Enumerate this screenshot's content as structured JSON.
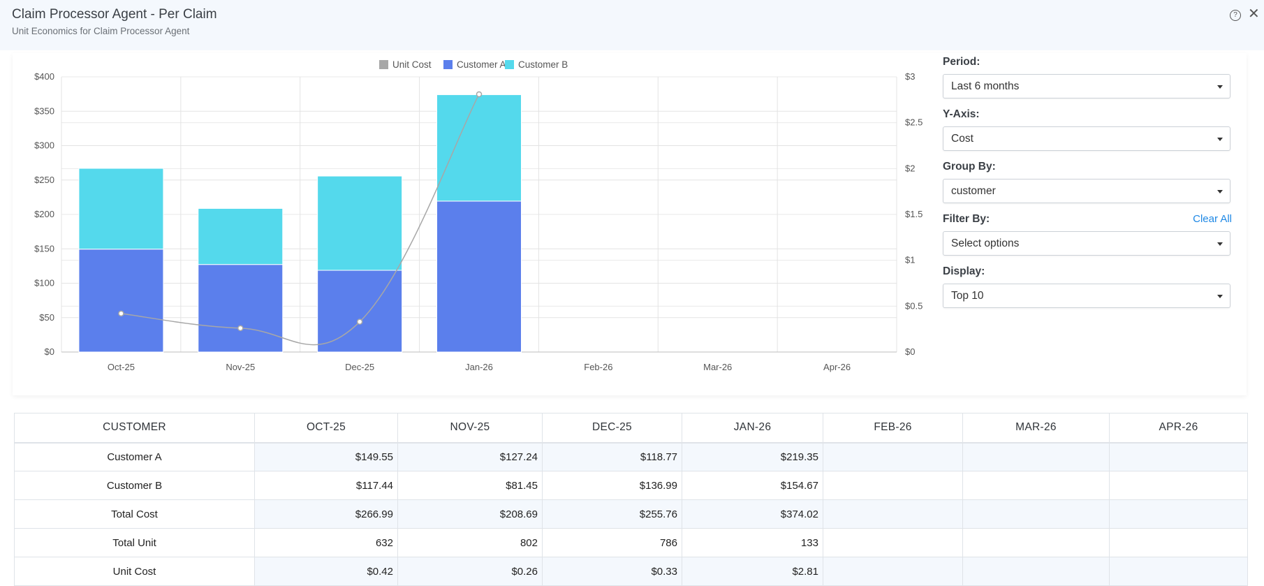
{
  "header": {
    "title": "Claim Processor Agent - Per Claim",
    "subtitle": "Unit Economics for Claim Processor Agent",
    "help_icon": "?",
    "close_icon": "✕"
  },
  "controls": {
    "period": {
      "label": "Period:",
      "value": "Last 6 months"
    },
    "yaxis": {
      "label": "Y-Axis:",
      "value": "Cost"
    },
    "groupby": {
      "label": "Group By:",
      "value": "customer"
    },
    "filterby": {
      "label": "Filter By:",
      "value": "Select options",
      "clear_label": "Clear All"
    },
    "display": {
      "label": "Display:",
      "value": "Top 10"
    }
  },
  "colors": {
    "customer_a": "#5b7fec",
    "customer_b": "#54d9ec",
    "unit_cost": "#a7a7a7",
    "link": "#1e88e5"
  },
  "chart_data": {
    "type": "bar",
    "stacked": true,
    "categories": [
      "Oct-25",
      "Nov-25",
      "Dec-25",
      "Jan-26",
      "Feb-26",
      "Mar-26",
      "Apr-26"
    ],
    "series": [
      {
        "name": "Customer A",
        "values": [
          149.55,
          127.24,
          118.77,
          219.35,
          null,
          null,
          null
        ]
      },
      {
        "name": "Customer B",
        "values": [
          117.44,
          81.45,
          136.99,
          154.67,
          null,
          null,
          null
        ]
      }
    ],
    "line_series": {
      "name": "Unit Cost",
      "axis": "right",
      "values": [
        0.42,
        0.26,
        0.33,
        2.81,
        null,
        null,
        null
      ]
    },
    "legend": [
      "Unit Cost",
      "Customer A",
      "Customer B"
    ],
    "legend_position": "top",
    "ylim": [
      0,
      400
    ],
    "y_ticks": [
      "$0",
      "$50",
      "$100",
      "$150",
      "$200",
      "$250",
      "$300",
      "$350",
      "$400"
    ],
    "y2lim": [
      0,
      3
    ],
    "y2_ticks": [
      "$0",
      "$0.5",
      "$1",
      "$1.5",
      "$2",
      "$2.5",
      "$3"
    ],
    "grid": true
  },
  "table": {
    "headers": [
      "CUSTOMER",
      "OCT-25",
      "NOV-25",
      "DEC-25",
      "JAN-26",
      "FEB-26",
      "MAR-26",
      "APR-26"
    ],
    "rows": [
      {
        "name": "Customer A",
        "cells": [
          "$149.55",
          "$127.24",
          "$118.77",
          "$219.35",
          "",
          "",
          ""
        ]
      },
      {
        "name": "Customer B",
        "cells": [
          "$117.44",
          "$81.45",
          "$136.99",
          "$154.67",
          "",
          "",
          ""
        ]
      },
      {
        "name": "Total Cost",
        "cells": [
          "$266.99",
          "$208.69",
          "$255.76",
          "$374.02",
          "",
          "",
          ""
        ]
      },
      {
        "name": "Total Unit",
        "cells": [
          "632",
          "802",
          "786",
          "133",
          "",
          "",
          ""
        ]
      },
      {
        "name": "Unit Cost",
        "cells": [
          "$0.42",
          "$0.26",
          "$0.33",
          "$2.81",
          "",
          "",
          ""
        ]
      }
    ]
  }
}
